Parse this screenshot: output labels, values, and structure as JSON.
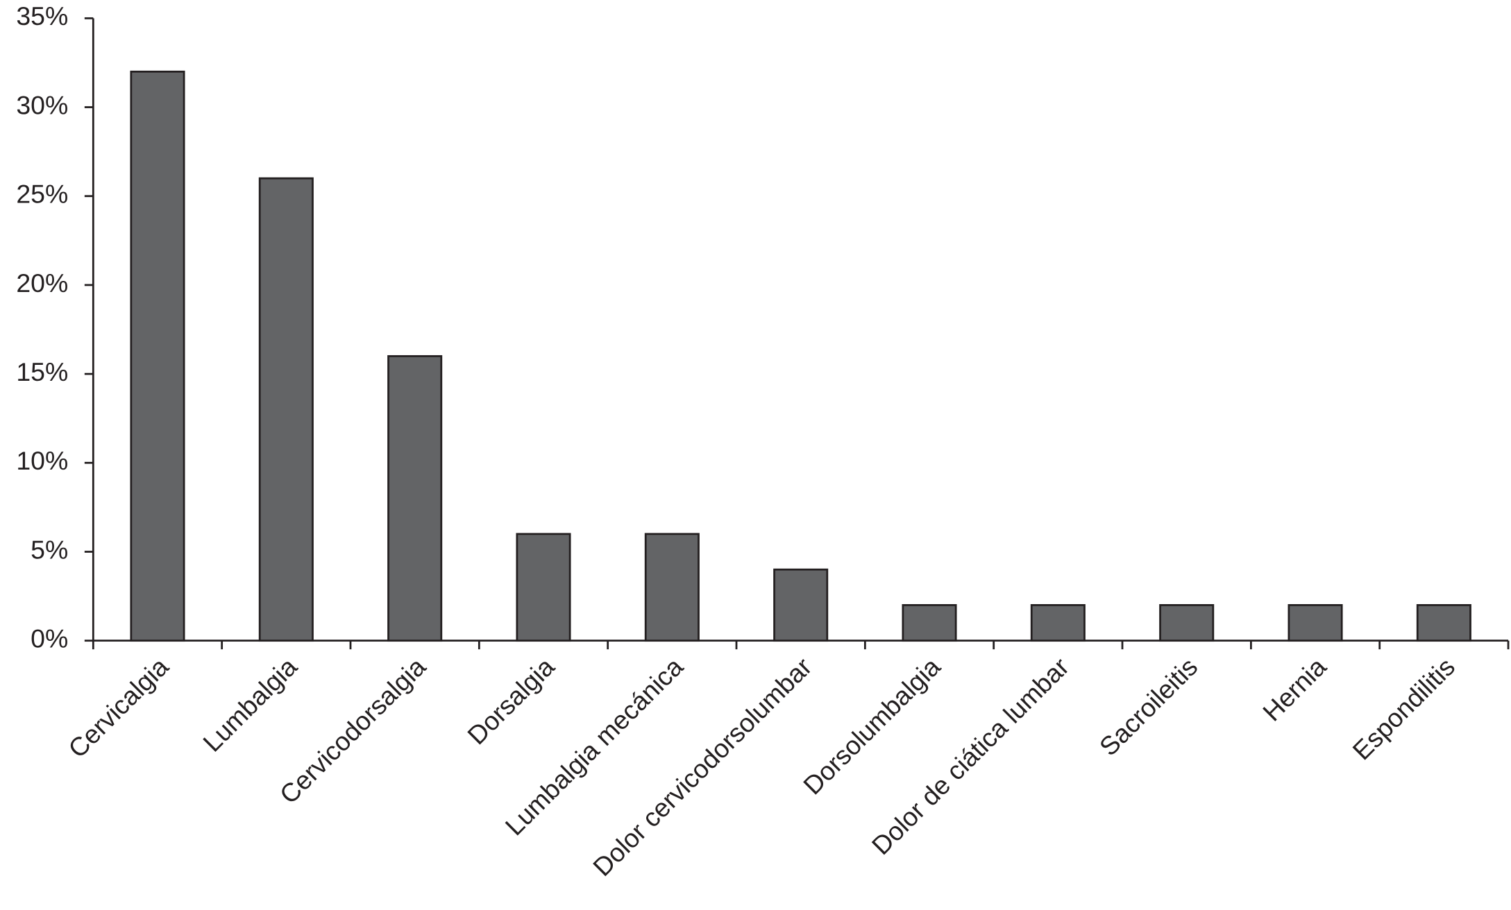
{
  "chart_data": {
    "type": "bar",
    "categories": [
      "Cervicalgia",
      "Lumbalgia",
      "Cervicodorsalgia",
      "Dorsalgia",
      "Lumbalgia mecánica",
      "Dolor cervicodorsolumbar",
      "Dorsolumbalgia",
      "Dolor de ciática lumbar",
      "Sacroileitis",
      "Hernia",
      "Espondilitis"
    ],
    "values": [
      32,
      26,
      16,
      6,
      6,
      4,
      2,
      2,
      2,
      2,
      2
    ],
    "color": "#636466",
    "ylim": [
      0,
      35
    ],
    "yticks": [
      {
        "value": 0,
        "label": "0%"
      },
      {
        "value": 5,
        "label": "5%"
      },
      {
        "value": 10,
        "label": "10%"
      },
      {
        "value": 15,
        "label": "15%"
      },
      {
        "value": 20,
        "label": "20%"
      },
      {
        "value": 25,
        "label": "25%"
      },
      {
        "value": 30,
        "label": "30%"
      },
      {
        "value": 35,
        "label": "35%"
      }
    ],
    "grid": false
  }
}
